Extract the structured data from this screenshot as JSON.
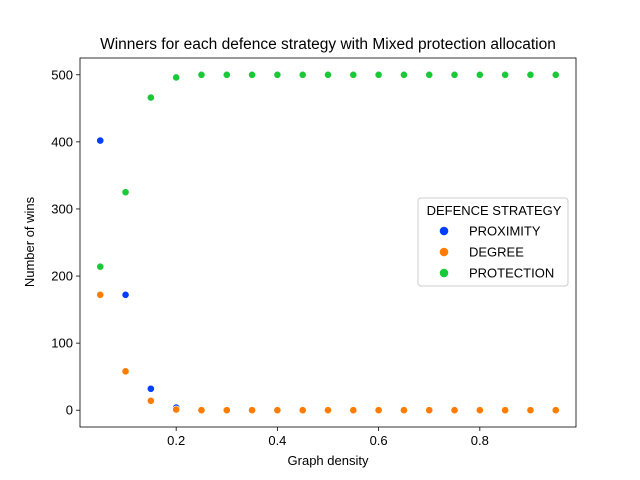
{
  "chart_data": {
    "type": "scatter",
    "title": "Winners for each defence strategy with Mixed protection allocation",
    "xlabel": "Graph density",
    "ylabel": "Number of wins",
    "xlim": [
      0.01,
      0.99
    ],
    "ylim": [
      -25,
      525
    ],
    "xticks": [
      0.2,
      0.4,
      0.6,
      0.8
    ],
    "xtick_labels": [
      "0.2",
      "0.4",
      "0.6",
      "0.8"
    ],
    "yticks": [
      0,
      100,
      200,
      300,
      400,
      500
    ],
    "ytick_labels": [
      "0",
      "100",
      "200",
      "300",
      "400",
      "500"
    ],
    "grid": false,
    "legend": {
      "title": "DEFENCE STRATEGY",
      "placement": "center-right"
    },
    "x": [
      0.05,
      0.1,
      0.15,
      0.2,
      0.25,
      0.3,
      0.35,
      0.4,
      0.45,
      0.5,
      0.55,
      0.6,
      0.65,
      0.7,
      0.75,
      0.8,
      0.85,
      0.9,
      0.95
    ],
    "series": [
      {
        "name": "PROXIMITY",
        "color": "#023eff",
        "values": [
          402,
          172,
          32,
          4,
          0,
          0,
          0,
          0,
          0,
          0,
          0,
          0,
          0,
          0,
          0,
          0,
          0,
          0,
          0
        ]
      },
      {
        "name": "DEGREE",
        "color": "#ff7c00",
        "values": [
          172,
          58,
          14,
          1,
          0,
          0,
          0,
          0,
          0,
          0,
          0,
          0,
          0,
          0,
          0,
          0,
          0,
          0,
          0
        ]
      },
      {
        "name": "PROTECTION",
        "color": "#1ac938",
        "values": [
          214,
          325,
          466,
          496,
          500,
          500,
          500,
          500,
          500,
          500,
          500,
          500,
          500,
          500,
          500,
          500,
          500,
          500,
          500
        ]
      }
    ]
  }
}
